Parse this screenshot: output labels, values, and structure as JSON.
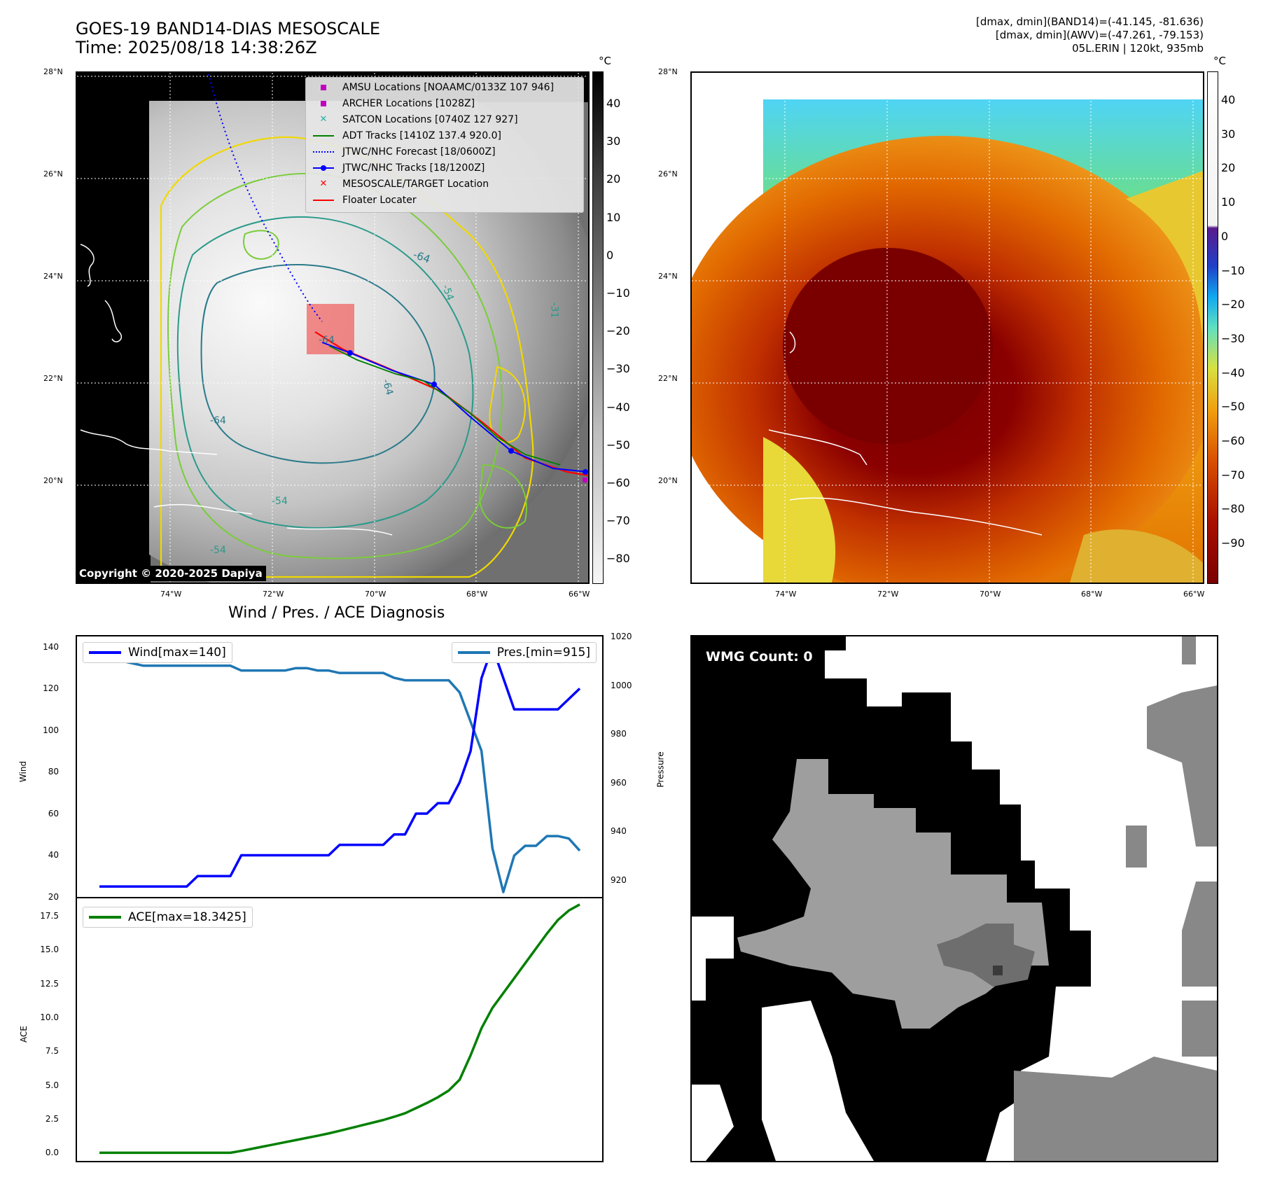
{
  "header": {
    "title_line1": "GOES-19 BAND14-DIAS MESOSCALE",
    "title_line2": "Time: 2025/08/18 14:38:26Z",
    "info_line1": "[dmax, dmin](BAND14)=(-41.145, -81.636)",
    "info_line2": "[dmax, dmin](AWV)=(-47.261, -79.153)",
    "info_line3": "05L.ERIN | 120kt, 935mb"
  },
  "map_axes": {
    "lat_ticks": [
      "28°N",
      "26°N",
      "24°N",
      "22°N",
      "20°N"
    ],
    "lon_ticks": [
      "74°W",
      "72°W",
      "70°W",
      "68°W",
      "66°W"
    ]
  },
  "ir_panel": {
    "legend": [
      {
        "label": "AMSU Locations [NOAAMC/0133Z 107 946]",
        "color": "#c000c0",
        "marker": "square"
      },
      {
        "label": "ARCHER Locations [1028Z]",
        "color": "#c000c0",
        "marker": "square"
      },
      {
        "label": "SATCON Locations [0740Z 127 927]",
        "color": "#20b2aa",
        "marker": "x"
      },
      {
        "label": "ADT Tracks [1410Z 137.4 920.0]",
        "color": "#008000",
        "marker": "line"
      },
      {
        "label": "JTWC/NHC Forecast [18/0600Z]",
        "color": "#0000ff",
        "marker": "dotted"
      },
      {
        "label": "JTWC/NHC Tracks [18/1200Z]",
        "color": "#0000ff",
        "marker": "line-dot"
      },
      {
        "label": "MESOSCALE/TARGET Location",
        "color": "#ff0000",
        "marker": "x"
      },
      {
        "label": "Floater Locater",
        "color": "#ff0000",
        "marker": "line"
      }
    ],
    "contour_labels": [
      "-64",
      "-64",
      "-64",
      "-64",
      "-54",
      "-54",
      "-54",
      "-31"
    ],
    "colorbar_unit": "°C",
    "colorbar_ticks": [
      "40",
      "30",
      "20",
      "10",
      "0",
      "−10",
      "−20",
      "−30",
      "−40",
      "−50",
      "−60",
      "−70",
      "−80"
    ],
    "copyright": "Copyright © 2020-2025 Dapiya"
  },
  "color_panel": {
    "colorbar_unit": "°C",
    "colorbar_ticks": [
      "40",
      "30",
      "20",
      "10",
      "0",
      "−10",
      "−20",
      "−30",
      "−40",
      "−50",
      "−60",
      "−70",
      "−80",
      "−90"
    ]
  },
  "diagnosis": {
    "title": "Wind / Pres. / ACE Diagnosis",
    "wind_ylabel": "Wind",
    "pres_ylabel": "Pressure",
    "ace_ylabel": "ACE",
    "wind_ticks": [
      "140",
      "120",
      "100",
      "80",
      "60",
      "40",
      "20"
    ],
    "pres_ticks": [
      "1020",
      "1000",
      "980",
      "960",
      "940",
      "920"
    ],
    "ace_ticks": [
      "17.5",
      "15.0",
      "12.5",
      "10.0",
      "7.5",
      "5.0",
      "2.5",
      "0.0"
    ],
    "wind_legend": "Wind[max=140]",
    "pres_legend": "Pres.[min=915]",
    "ace_legend": "ACE[max=18.3425]"
  },
  "wmg": {
    "label": "WMG Count: 0"
  },
  "chart_data": [
    {
      "type": "line",
      "title": "Wind / Pres. / ACE Diagnosis",
      "ylabel": "Wind",
      "ylim": [
        20,
        145
      ],
      "series": [
        {
          "name": "Wind[max=140]",
          "color": "#0000ff",
          "values": [
            25,
            25,
            25,
            25,
            25,
            25,
            25,
            25,
            25,
            30,
            30,
            30,
            30,
            40,
            40,
            40,
            40,
            40,
            40,
            40,
            40,
            40,
            45,
            45,
            45,
            45,
            45,
            50,
            50,
            60,
            60,
            65,
            65,
            75,
            90,
            125,
            140,
            125,
            110,
            110,
            110,
            110,
            110,
            115,
            120
          ]
        }
      ]
    },
    {
      "type": "line",
      "ylabel": "Pressure",
      "ylim": [
        913,
        1020
      ],
      "series": [
        {
          "name": "Pres.[min=915]",
          "color": "#1f77b4",
          "values": [
            1015,
            1015,
            1010,
            1009,
            1008,
            1008,
            1008,
            1008,
            1008,
            1008,
            1008,
            1008,
            1008,
            1006,
            1006,
            1006,
            1006,
            1006,
            1007,
            1007,
            1006,
            1006,
            1005,
            1005,
            1005,
            1005,
            1005,
            1003,
            1002,
            1002,
            1002,
            1002,
            1002,
            997,
            985,
            973,
            933,
            915,
            930,
            934,
            934,
            938,
            938,
            937,
            932
          ]
        }
      ]
    },
    {
      "type": "line",
      "ylabel": "ACE",
      "ylim": [
        -0.6,
        18.8
      ],
      "series": [
        {
          "name": "ACE[max=18.3425]",
          "color": "#008000",
          "values": [
            0,
            0,
            0,
            0,
            0,
            0,
            0,
            0,
            0,
            0,
            0,
            0,
            0,
            0.14,
            0.3,
            0.46,
            0.62,
            0.78,
            0.94,
            1.1,
            1.26,
            1.43,
            1.62,
            1.82,
            2.02,
            2.22,
            2.42,
            2.66,
            2.92,
            3.3,
            3.68,
            4.1,
            4.6,
            5.4,
            7.2,
            9.2,
            10.7,
            11.8,
            12.9,
            14.0,
            15.1,
            16.2,
            17.2,
            17.9,
            18.3425
          ]
        }
      ]
    }
  ]
}
